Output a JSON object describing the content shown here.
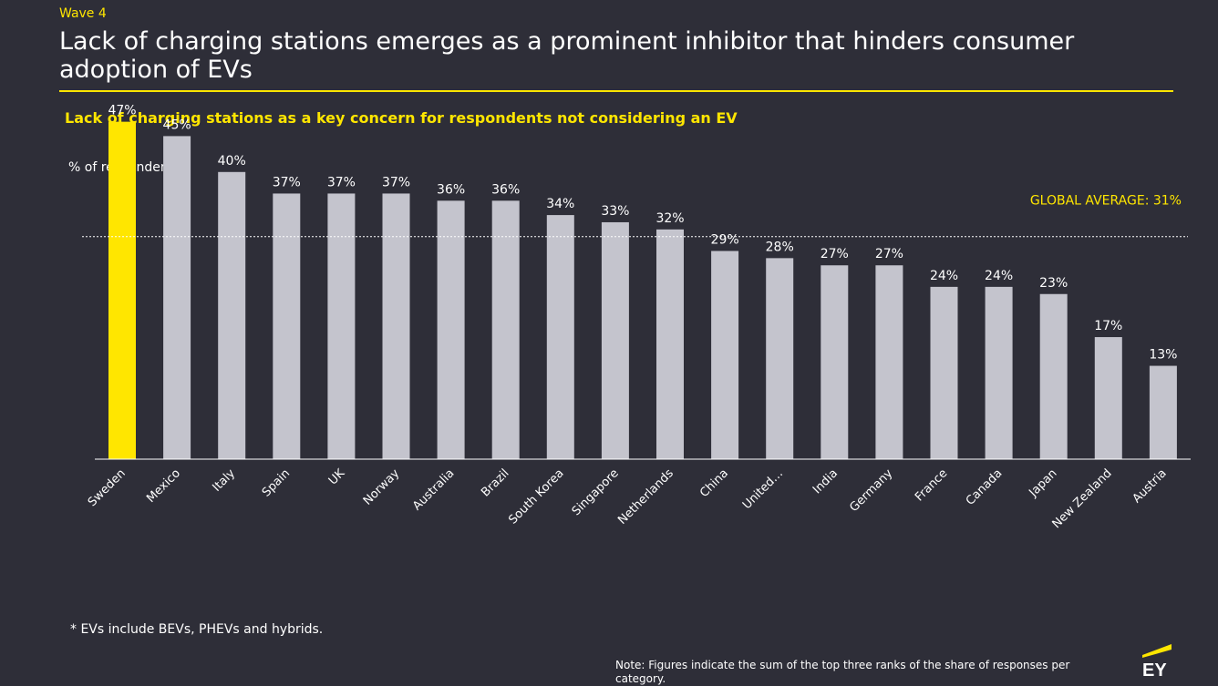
{
  "header": {
    "eyebrow": "Wave 4",
    "title": "Lack of charging stations emerges as a prominent inhibitor that hinders consumer adoption of EVs",
    "subtitle": "Lack of charging stations as a key concern for respondents not considering an EV"
  },
  "chart_data": {
    "type": "bar",
    "title": "Lack of charging stations as a key concern for respondents not considering an EV",
    "ylabel": "% of respondents",
    "xlabel": "",
    "ylim": [
      0,
      50
    ],
    "grid": false,
    "categories": [
      "Sweden",
      "Mexico",
      "Italy",
      "Spain",
      "UK",
      "Norway",
      "Australia",
      "Brazil",
      "South Korea",
      "Singapore",
      "Netherlands",
      "China",
      "United…",
      "India",
      "Germany",
      "France",
      "Canada",
      "Japan",
      "New Zealand",
      "Austria"
    ],
    "values": [
      47,
      45,
      40,
      37,
      37,
      37,
      36,
      36,
      34,
      33,
      32,
      29,
      28,
      27,
      27,
      24,
      24,
      23,
      17,
      13
    ],
    "value_labels": [
      "47%",
      "45%",
      "40%",
      "37%",
      "37%",
      "37%",
      "36%",
      "36%",
      "34%",
      "33%",
      "32%",
      "29%",
      "28%",
      "27%",
      "27%",
      "24%",
      "24%",
      "23%",
      "17%",
      "13%"
    ],
    "highlight_index": 0,
    "reference_line": {
      "value": 31,
      "label": "GLOBAL AVERAGE: 31%"
    },
    "colors": {
      "bar": "#c4c4cd",
      "highlight": "#ffe600",
      "reference": "#ffffff",
      "reference_label": "#ffe600",
      "text": "#ffffff"
    }
  },
  "footer": {
    "footnote": "* EVs include BEVs, PHEVs and hybrids.",
    "note": "Note: Figures indicate the sum of the top three ranks of the share of responses per category.",
    "logo_text": "EY"
  },
  "colors": {
    "background": "#2e2e38",
    "accent": "#ffe600"
  }
}
